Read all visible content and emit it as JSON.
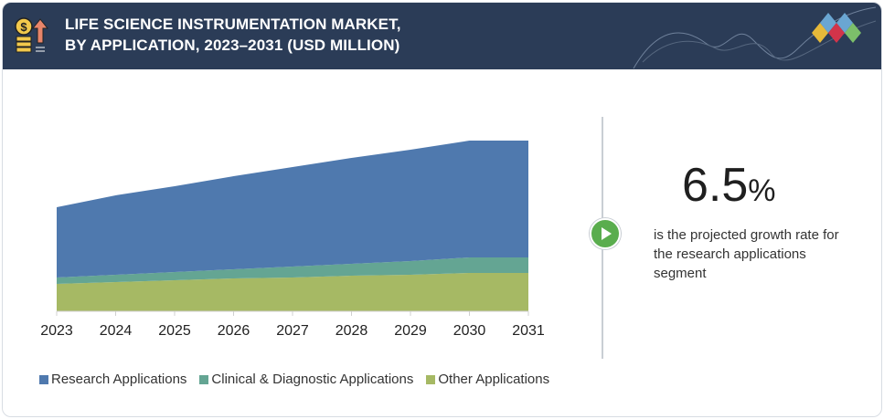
{
  "header": {
    "title_line1": "LIFE SCIENCE INSTRUMENTATION MARKET,",
    "title_line2": "BY APPLICATION, 2023–2031 (USD MILLION)"
  },
  "highlight": {
    "value": "6.5",
    "unit": "%",
    "description": "is the projected growth rate for the research applications segment"
  },
  "chart_data": {
    "type": "area",
    "stacked": true,
    "title": "LIFE SCIENCE INSTRUMENTATION MARKET, BY APPLICATION, 2023–2031 (USD MILLION)",
    "categories": [
      "2023",
      "2024",
      "2025",
      "2026",
      "2027",
      "2028",
      "2029",
      "2030",
      "2031"
    ],
    "series": [
      {
        "name": "Other Applications",
        "color": "#a6b964",
        "values": [
          30,
          32,
          34,
          36,
          37,
          39,
          40,
          42,
          42
        ]
      },
      {
        "name": "Clinical & Diagnostic Applications",
        "color": "#64a593",
        "values": [
          7,
          8,
          9,
          10,
          12,
          13,
          15,
          17,
          17
        ]
      },
      {
        "name": "Research Applications",
        "color": "#4f79ae",
        "values": [
          77,
          87,
          94,
          102,
          109,
          116,
          122,
          128,
          128
        ]
      }
    ],
    "y_axis_shown": false,
    "grid": false,
    "legend_position": "bottom"
  },
  "legend": [
    "Research Applications",
    "Clinical & Diagnostic Applications",
    "Other Applications"
  ],
  "colors": {
    "header_bg": "#2b3c57",
    "research": "#4f79ae",
    "clinical": "#64a593",
    "other": "#a6b964",
    "accent": "#5aad4e"
  }
}
